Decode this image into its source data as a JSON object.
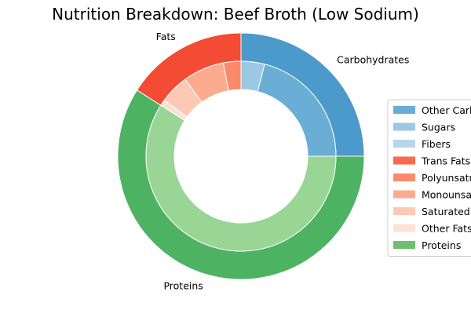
{
  "chart_data": {
    "type": "pie",
    "title": "Nutrition Breakdown:  Beef Broth (Low Sodium)",
    "donut": true,
    "legend_position": "right",
    "outer_ring": [
      {
        "label": "Carbohydrates",
        "value": 25,
        "color": "#4b9acb"
      },
      {
        "label": "Fats",
        "value": 16,
        "color": "#f44b34"
      },
      {
        "label": "Proteins",
        "value": 59,
        "color": "#4db262"
      }
    ],
    "inner_ring": [
      {
        "name": "Other Carbohydrates",
        "group": "Carbohydrates",
        "value": 21,
        "color": "#6aaed6"
      },
      {
        "name": "Sugars",
        "group": "Carbohydrates",
        "value": 4,
        "color": "#9bc8e2"
      },
      {
        "name": "Fibers",
        "group": "Carbohydrates",
        "value": 0,
        "color": "#b9d5ea"
      },
      {
        "name": "Trans Fats",
        "group": "Fats",
        "value": 0,
        "color": "#fb6a4a"
      },
      {
        "name": "Polyunsaturated Fats",
        "group": "Fats",
        "value": 3,
        "color": "#fc8a6a"
      },
      {
        "name": "Monounsaturated Fats",
        "group": "Fats",
        "value": 7,
        "color": "#fcab8f"
      },
      {
        "name": "Saturated Fats",
        "group": "Fats",
        "value": 5,
        "color": "#fdc9b4"
      },
      {
        "name": "Other Fats",
        "group": "Fats",
        "value": 1,
        "color": "#fee1d4"
      },
      {
        "name": "Proteins",
        "group": "Proteins",
        "value": 59,
        "color": "#99d594"
      }
    ],
    "legend": [
      {
        "label": "Other Carbohydrates",
        "color": "#6aaed6"
      },
      {
        "label": "Sugars",
        "color": "#9bc8e2"
      },
      {
        "label": "Fibers",
        "color": "#b9d5ea"
      },
      {
        "label": "Trans Fats",
        "color": "#fb6a4a"
      },
      {
        "label": "Polyunsaturated Fats",
        "color": "#fc8a6a"
      },
      {
        "label": "Monounsaturated Fats",
        "color": "#fcab8f"
      },
      {
        "label": "Saturated Fats",
        "color": "#fdc9b4"
      },
      {
        "label": "Other Fats",
        "color": "#fee1d4"
      },
      {
        "label": "Proteins",
        "color": "#6cc070"
      }
    ]
  }
}
